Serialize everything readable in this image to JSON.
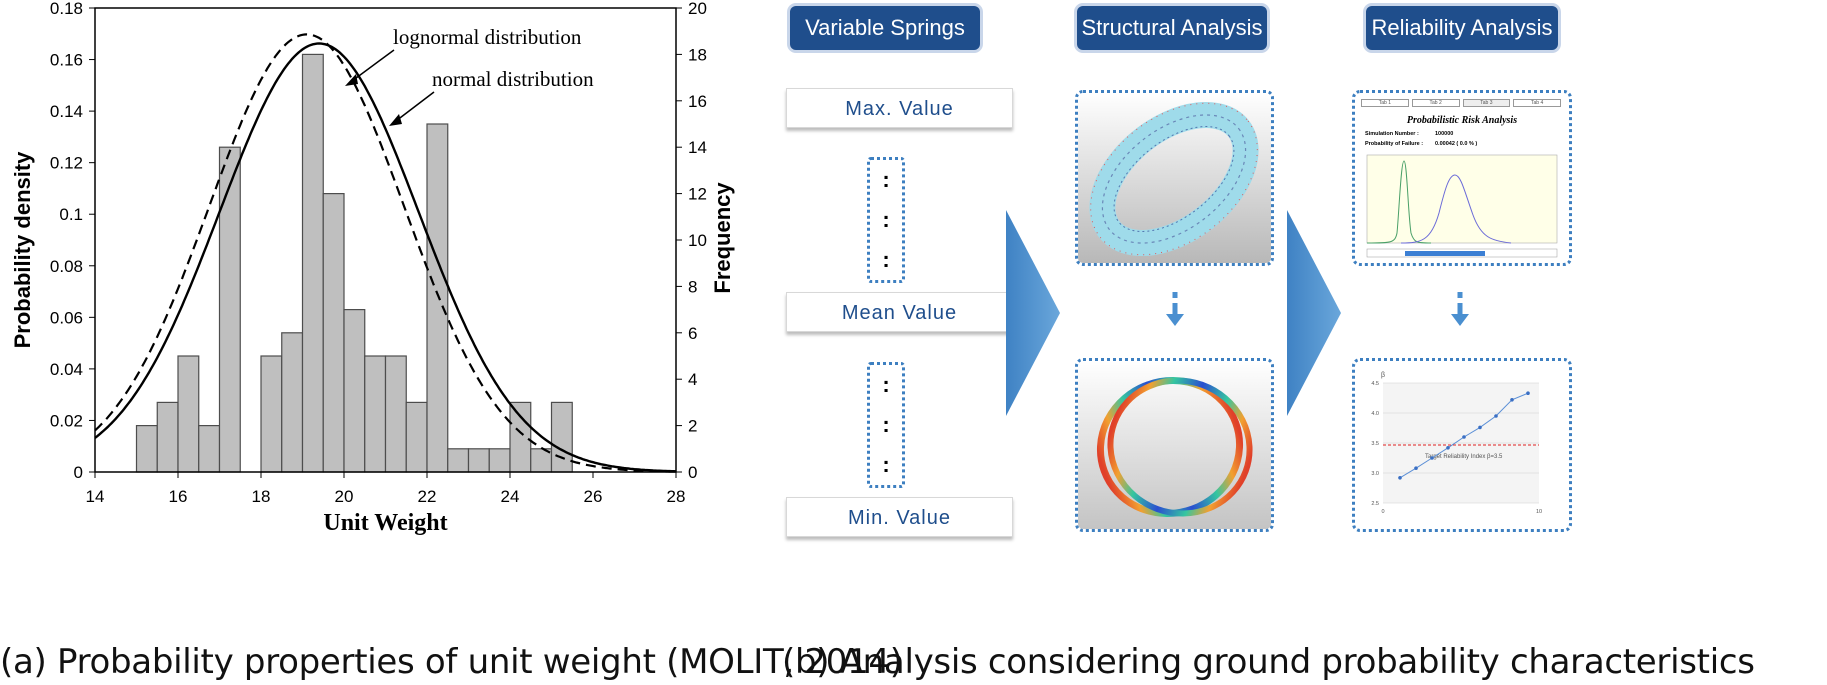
{
  "chart_data": {
    "type": "bar",
    "xlabel": "Unit Weight",
    "ylabel": "Probability density",
    "y2label": "Frequency",
    "xlim": [
      14,
      28
    ],
    "ylim": [
      0,
      0.18
    ],
    "y2lim": [
      0,
      20
    ],
    "x_ticks": [
      "14",
      "16",
      "18",
      "20",
      "22",
      "24",
      "26",
      "28"
    ],
    "y_ticks": [
      "0",
      "0.02",
      "0.04",
      "0.06",
      "0.08",
      "0.1",
      "0.12",
      "0.14",
      "0.16",
      "0.18"
    ],
    "y2_ticks": [
      "0",
      "2",
      "4",
      "6",
      "8",
      "10",
      "12",
      "14",
      "16",
      "18",
      "20"
    ],
    "bins": [
      {
        "x0": 15.0,
        "x1": 15.5,
        "freq": 2
      },
      {
        "x0": 15.5,
        "x1": 16.0,
        "freq": 3
      },
      {
        "x0": 16.0,
        "x1": 16.5,
        "freq": 5
      },
      {
        "x0": 16.5,
        "x1": 17.0,
        "freq": 2
      },
      {
        "x0": 17.0,
        "x1": 17.5,
        "freq": 14
      },
      {
        "x0": 18.0,
        "x1": 18.5,
        "freq": 5
      },
      {
        "x0": 18.5,
        "x1": 19.0,
        "freq": 6
      },
      {
        "x0": 19.0,
        "x1": 19.5,
        "freq": 18
      },
      {
        "x0": 19.5,
        "x1": 20.0,
        "freq": 12
      },
      {
        "x0": 20.0,
        "x1": 20.5,
        "freq": 7
      },
      {
        "x0": 20.5,
        "x1": 21.0,
        "freq": 5
      },
      {
        "x0": 21.0,
        "x1": 21.5,
        "freq": 5
      },
      {
        "x0": 21.5,
        "x1": 22.0,
        "freq": 3
      },
      {
        "x0": 22.0,
        "x1": 22.5,
        "freq": 15
      },
      {
        "x0": 22.5,
        "x1": 23.0,
        "freq": 1
      },
      {
        "x0": 23.0,
        "x1": 23.5,
        "freq": 1
      },
      {
        "x0": 23.5,
        "x1": 24.0,
        "freq": 1
      },
      {
        "x0": 24.0,
        "x1": 24.5,
        "freq": 3
      },
      {
        "x0": 24.5,
        "x1": 25.0,
        "freq": 1
      },
      {
        "x0": 25.0,
        "x1": 25.5,
        "freq": 3
      }
    ],
    "series": [
      {
        "name": "lognormal distribution",
        "style": "dashed",
        "mean": 19.1,
        "sd": 2.35
      },
      {
        "name": "normal distribution",
        "style": "solid",
        "mean": 19.4,
        "sd": 2.4
      }
    ],
    "colors": {
      "bar_fill": "#bfbfbf",
      "bar_stroke": "#4d4d4d",
      "curve": "#000000"
    }
  },
  "captions": {
    "left": "(a) Probability properties of unit weight (MOLIT, 2014)",
    "right": "(b) Analysis considering ground probability characteristics"
  },
  "diagram": {
    "headers": [
      "Variable Springs",
      "Structural Analysis",
      "Reliability Analysis"
    ],
    "values": [
      "Max. Value",
      "Mean Value",
      "Min. Value"
    ],
    "ellipsis": ":",
    "risk_panel": {
      "tabs": [
        "Tab 1",
        "Tab 2",
        "Tab 3",
        "Tab 4"
      ],
      "title": "Probabilistic Risk Analysis",
      "rows": [
        {
          "label": "Simulation Number :",
          "value": "100000"
        },
        {
          "label": "Probability of Failure :",
          "value": "0.00042 ( 0.0 % )"
        }
      ]
    },
    "beta_panel": {
      "y_symbol": "β",
      "y_ticks": [
        "4.5",
        "4.0",
        "3.5",
        "3.0",
        "2.5"
      ],
      "x_ticks": [
        "0",
        "10"
      ],
      "target_label": "Target  Reliability  Index  β=3.5",
      "points": [
        2.92,
        3.08,
        3.25,
        3.42,
        3.6,
        3.76,
        3.95,
        4.22,
        4.33
      ]
    },
    "colors": {
      "header_bg": "#1f4e8c",
      "dotted": "#3d7fc0",
      "arrow": "#4a8fd0",
      "big_arrow": "#5a9bd5"
    }
  }
}
